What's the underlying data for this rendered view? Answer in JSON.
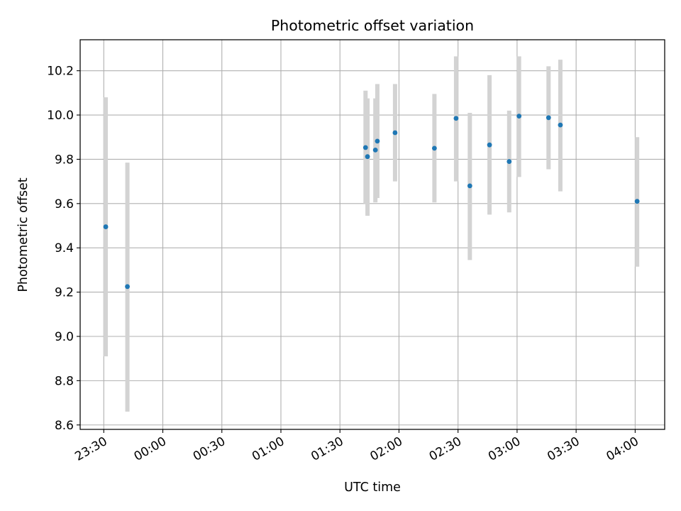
{
  "chart_data": {
    "type": "scatter",
    "title": "Photometric offset variation",
    "xlabel": "UTC time",
    "ylabel": "Photometric offset",
    "x_unit": "UTC time (hh:mm), 23:30 on day 1 through 04:00 on day 2",
    "x_ticks": [
      "23:30",
      "00:00",
      "00:30",
      "01:00",
      "01:30",
      "02:00",
      "02:30",
      "03:00",
      "03:30",
      "04:00"
    ],
    "y_ticks": [
      "8.6",
      "8.8",
      "9.0",
      "9.2",
      "9.4",
      "9.6",
      "9.8",
      "10.0",
      "10.2"
    ],
    "xlim": [
      "23:18",
      "04:15"
    ],
    "ylim": [
      8.58,
      10.34
    ],
    "grid": true,
    "colors": {
      "point": "#1f77b4",
      "errorbar": "#d3d3d3",
      "grid": "#b0b0b0"
    },
    "series": [
      {
        "points": [
          {
            "x": "23:31",
            "y": 9.495,
            "ylow": 8.91,
            "yhigh": 10.08
          },
          {
            "x": "23:42",
            "y": 9.225,
            "ylow": 8.66,
            "yhigh": 9.785
          },
          {
            "x": "01:43",
            "y": 9.853,
            "ylow": 9.6,
            "yhigh": 10.11
          },
          {
            "x": "01:44",
            "y": 9.812,
            "ylow": 9.545,
            "yhigh": 10.075
          },
          {
            "x": "01:48",
            "y": 9.842,
            "ylow": 9.605,
            "yhigh": 10.075
          },
          {
            "x": "01:49",
            "y": 9.882,
            "ylow": 9.625,
            "yhigh": 10.14
          },
          {
            "x": "01:58",
            "y": 9.92,
            "ylow": 9.7,
            "yhigh": 10.14
          },
          {
            "x": "02:18",
            "y": 9.85,
            "ylow": 9.605,
            "yhigh": 10.095
          },
          {
            "x": "02:29",
            "y": 9.985,
            "ylow": 9.7,
            "yhigh": 10.265
          },
          {
            "x": "02:36",
            "y": 9.68,
            "ylow": 9.345,
            "yhigh": 10.01
          },
          {
            "x": "02:46",
            "y": 9.865,
            "ylow": 9.55,
            "yhigh": 10.18
          },
          {
            "x": "02:56",
            "y": 9.79,
            "ylow": 9.56,
            "yhigh": 10.02
          },
          {
            "x": "03:01",
            "y": 9.995,
            "ylow": 9.72,
            "yhigh": 10.265
          },
          {
            "x": "03:16",
            "y": 9.988,
            "ylow": 9.755,
            "yhigh": 10.22
          },
          {
            "x": "03:22",
            "y": 9.955,
            "ylow": 9.655,
            "yhigh": 10.25
          },
          {
            "x": "04:01",
            "y": 9.61,
            "ylow": 9.315,
            "yhigh": 9.9
          }
        ]
      }
    ]
  }
}
